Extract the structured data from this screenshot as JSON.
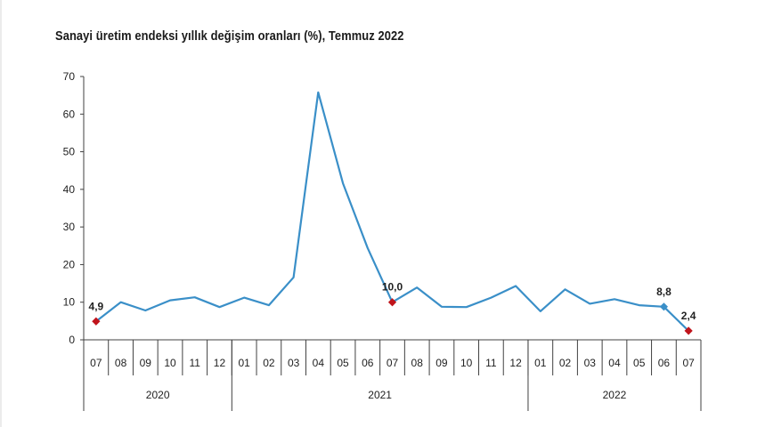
{
  "chart_data": {
    "type": "line",
    "title": "Sanayi üretim endeksi yıllık değişim oranları (%), Temmuz 2022",
    "xlabel": "",
    "ylabel": "",
    "ylim": [
      0,
      70
    ],
    "yticks": [
      "0",
      "10",
      "20",
      "30",
      "40",
      "50",
      "60",
      "70"
    ],
    "grid": false,
    "categories": [
      "07",
      "08",
      "09",
      "10",
      "11",
      "12",
      "01",
      "02",
      "03",
      "04",
      "05",
      "06",
      "07",
      "08",
      "09",
      "10",
      "11",
      "12",
      "01",
      "02",
      "03",
      "04",
      "05",
      "06",
      "07"
    ],
    "year_groups": [
      {
        "label": "2020",
        "count": 6
      },
      {
        "label": "2021",
        "count": 12
      },
      {
        "label": "2022",
        "count": 7
      }
    ],
    "series": [
      {
        "values": [
          4.9,
          10.0,
          7.8,
          10.5,
          11.3,
          8.7,
          11.2,
          9.2,
          16.6,
          65.8,
          41.6,
          24.4,
          10.0,
          13.9,
          8.8,
          8.7,
          11.2,
          14.3,
          7.6,
          13.4,
          9.6,
          10.8,
          9.2,
          8.8,
          2.4
        ],
        "color": "#3a8fc8"
      }
    ],
    "markers": [
      {
        "index": 0,
        "label": "4,9",
        "color": "#c0141b"
      },
      {
        "index": 12,
        "label": "10,0",
        "color": "#c0141b"
      },
      {
        "index": 23,
        "label": "8,8",
        "color": "#3a8fc8"
      },
      {
        "index": 24,
        "label": "2,4",
        "color": "#c0141b"
      }
    ]
  }
}
